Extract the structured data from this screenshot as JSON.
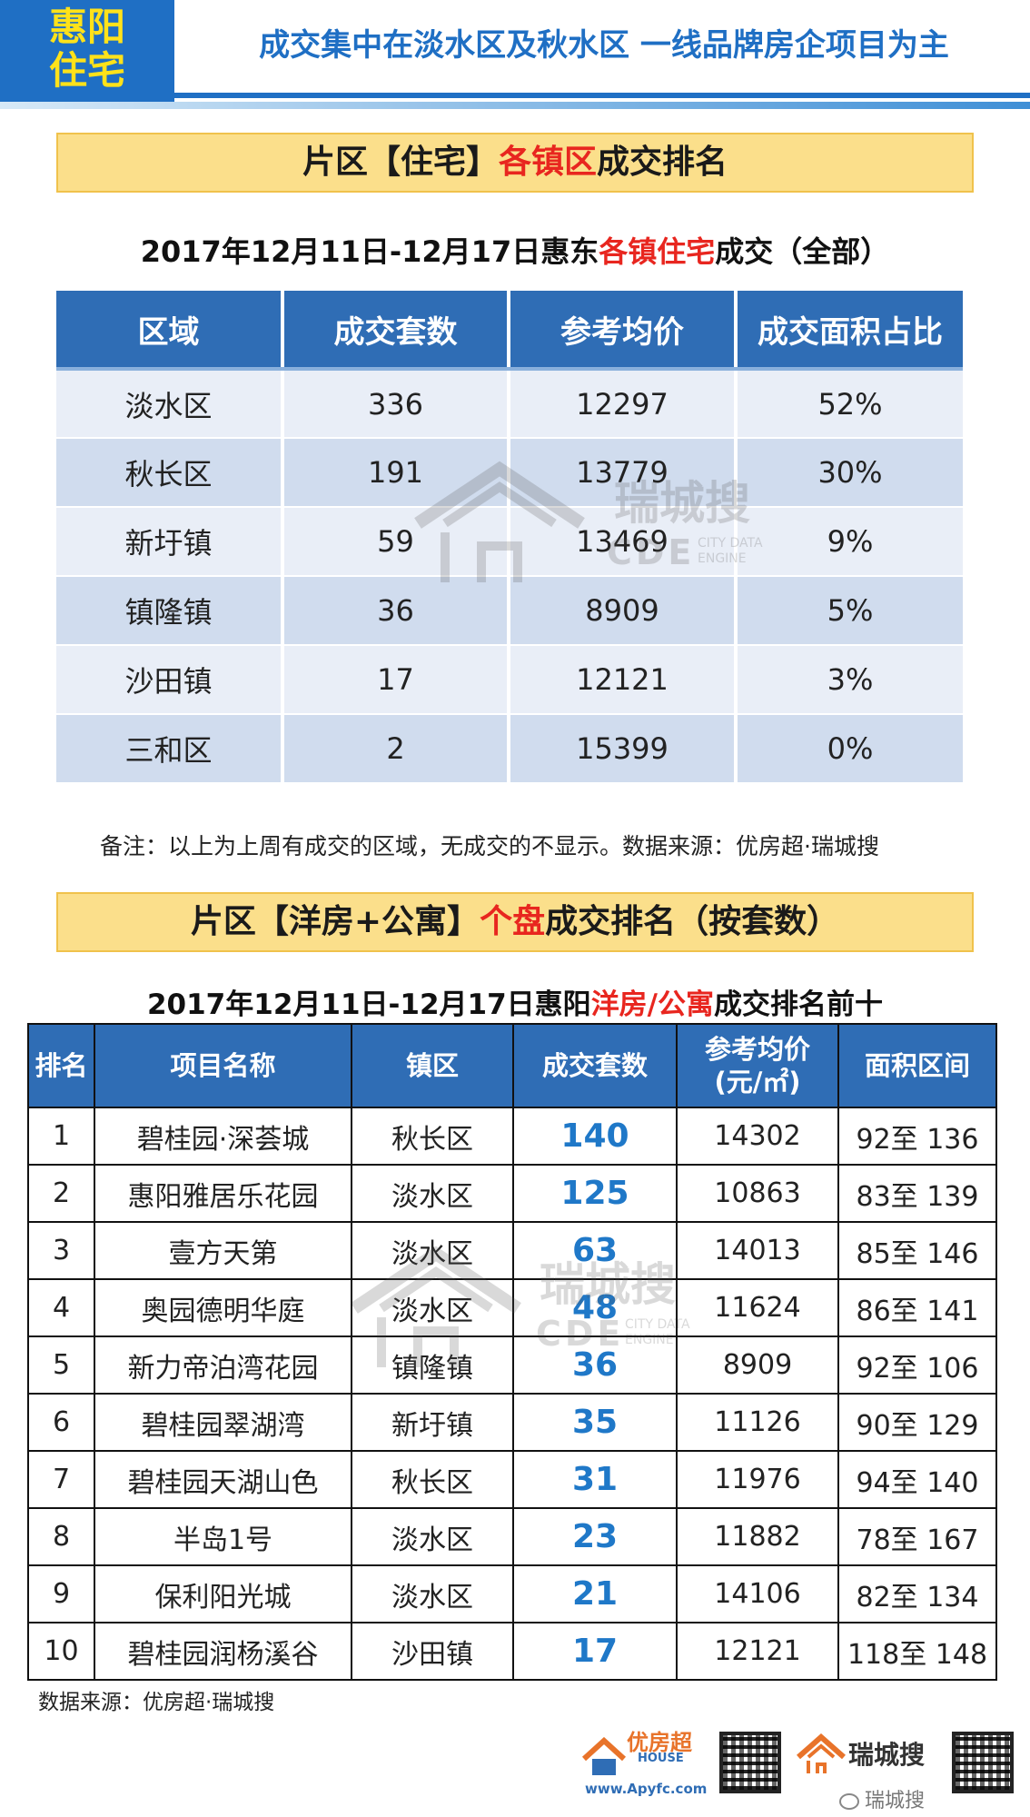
{
  "header": {
    "tag_line1": "惠阳",
    "tag_line2": "住宅",
    "headline": "成交集中在淡水区及秋水区  一线品牌房企项目为主"
  },
  "section1": {
    "banner_a": "片区【住宅】",
    "banner_b": "各镇区",
    "banner_c": "成交排名",
    "subtitle_a": "2017年12月11日-12月17日惠东",
    "subtitle_b": "各镇住宅",
    "subtitle_c": "成交（全部）",
    "columns": [
      "区域",
      "成交套数",
      "参考均价",
      "成交面积占比"
    ],
    "rows": [
      [
        "淡水区",
        "336",
        "12297",
        "52%"
      ],
      [
        "秋长区",
        "191",
        "13779",
        "30%"
      ],
      [
        "新圩镇",
        "59",
        "13469",
        "9%"
      ],
      [
        "镇隆镇",
        "36",
        "8909",
        "5%"
      ],
      [
        "沙田镇",
        "17",
        "12121",
        "3%"
      ],
      [
        "三和区",
        "2",
        "15399",
        "0%"
      ]
    ],
    "note": "备注：以上为上周有成交的区域，无成交的不显示。数据来源：优房超·瑞城搜"
  },
  "section2": {
    "banner_a": "片区【洋房+公寓】",
    "banner_b": "个盘",
    "banner_c": "成交排名（按套数）",
    "subtitle_a": "2017年12月11日-12月17日惠阳",
    "subtitle_b": "洋房/公寓",
    "subtitle_c": "成交排名前十",
    "columns": [
      "排名",
      "项目名称",
      "镇区",
      "成交套数",
      "参考均价",
      "(元/㎡)",
      "面积区间"
    ],
    "rows": [
      [
        "1",
        "碧桂园·深荟城",
        "秋长区",
        "140",
        "14302",
        "92至 136"
      ],
      [
        "2",
        "惠阳雅居乐花园",
        "淡水区",
        "125",
        "10863",
        "83至 139"
      ],
      [
        "3",
        "壹方天第",
        "淡水区",
        "63",
        "14013",
        "85至 146"
      ],
      [
        "4",
        "奥园德明华庭",
        "淡水区",
        "48",
        "11624",
        "86至 141"
      ],
      [
        "5",
        "新力帝泊湾花园",
        "镇隆镇",
        "36",
        "8909",
        "92至 106"
      ],
      [
        "6",
        "碧桂园翠湖湾",
        "新圩镇",
        "35",
        "11126",
        "90至 129"
      ],
      [
        "7",
        "碧桂园天湖山色",
        "秋长区",
        "31",
        "11976",
        "94至 140"
      ],
      [
        "8",
        "半岛1号",
        "淡水区",
        "23",
        "11882",
        "78至 167"
      ],
      [
        "9",
        "保利阳光城",
        "淡水区",
        "21",
        "14106",
        "82至 134"
      ],
      [
        "10",
        "碧桂园润杨溪谷",
        "沙田镇",
        "17",
        "12121",
        "118至 148"
      ]
    ],
    "source": "数据来源：优房超·瑞城搜"
  },
  "watermark": {
    "zh": "瑞城搜",
    "cde": "CDE",
    "eng_line1": "CITY DATA",
    "eng_line2": "ENGINE"
  },
  "footer": {
    "logo1_name": "优房超",
    "logo1_sub": "HOUSE",
    "logo1_url": "www.Apyfc.com",
    "logo2_name": "瑞城搜",
    "wechat": "瑞城搜"
  },
  "colors": {
    "brand_blue": "#1f6fc4",
    "header_blue": "#2f6db5",
    "accent_red": "#e8261f",
    "banner_yellow": "#fbdf8b",
    "tag_yellow": "#ffe21a",
    "number_blue": "#1f78c8"
  }
}
